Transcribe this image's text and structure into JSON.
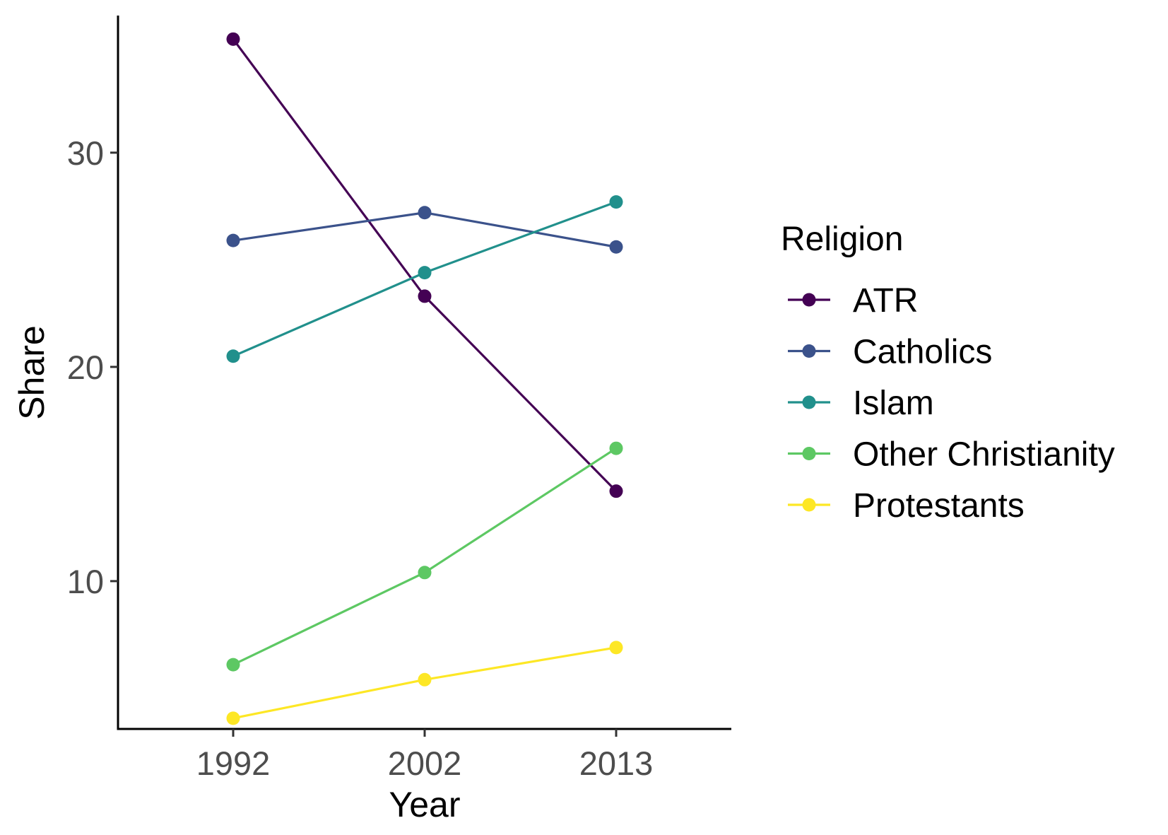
{
  "chart_data": {
    "type": "line",
    "title": "",
    "xlabel": "Year",
    "ylabel": "Share",
    "categories": [
      "1992",
      "2002",
      "2013"
    ],
    "ylim": [
      3.1,
      36.4
    ],
    "yticks": [
      10,
      20,
      30
    ],
    "grid": false,
    "legend_title": "Religion",
    "legend_position": "right",
    "series": [
      {
        "name": "ATR",
        "color": "#440154",
        "values": [
          35.3,
          23.3,
          14.2
        ]
      },
      {
        "name": "Catholics",
        "color": "#3B528B",
        "values": [
          25.9,
          27.2,
          25.6
        ]
      },
      {
        "name": "Islam",
        "color": "#21908C",
        "values": [
          20.5,
          24.4,
          27.7
        ]
      },
      {
        "name": "Other Christianity",
        "color": "#5DC863",
        "values": [
          6.1,
          10.4,
          16.2
        ]
      },
      {
        "name": "Protestants",
        "color": "#FDE725",
        "values": [
          3.6,
          5.4,
          6.9
        ]
      }
    ]
  }
}
